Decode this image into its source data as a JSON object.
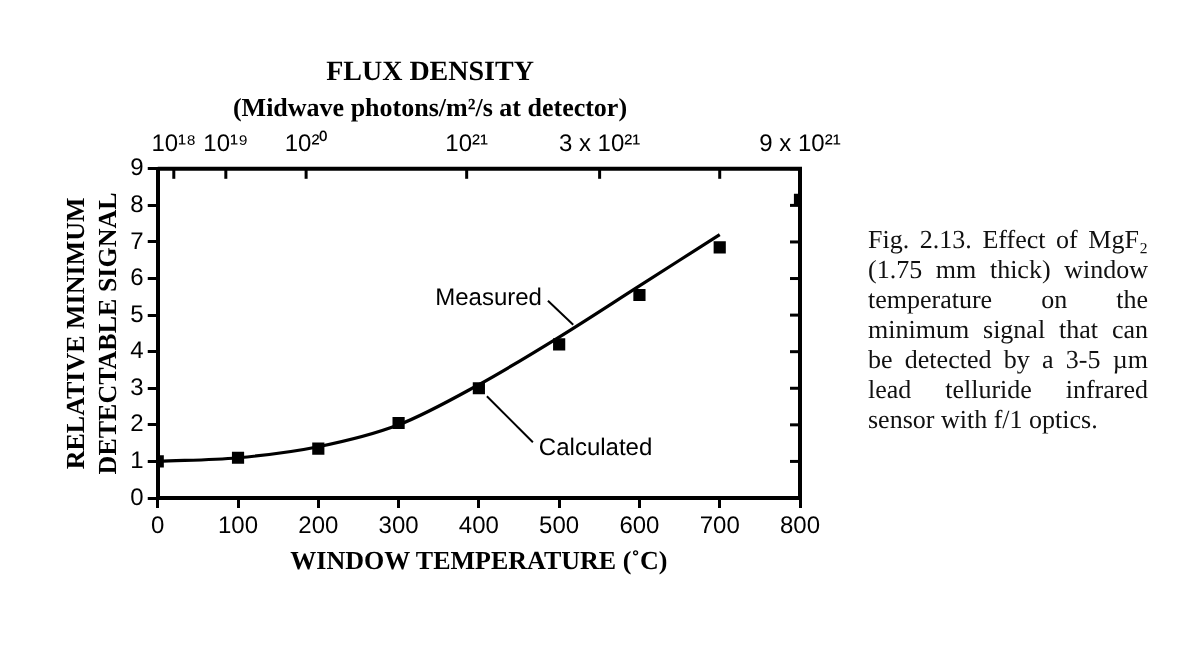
{
  "chart_data": {
    "type": "line",
    "title": "FLUX DENSITY",
    "subtitle": "(Midwave photons/m²/s at detector)",
    "xlabel": "WINDOW TEMPERATURE (˚C)",
    "ylabel": "RELATIVE MINIMUM DETECTABLE SIGNAL",
    "x": [
      0,
      100,
      200,
      300,
      400,
      500,
      600,
      700
    ],
    "series": [
      {
        "name": "Measured",
        "type": "line",
        "color": "#000000",
        "marker": "none",
        "values": [
          1.0,
          1.1,
          1.4,
          2.0,
          3.1,
          4.4,
          5.8,
          7.2
        ]
      },
      {
        "name": "Calculated",
        "type": "scatter",
        "color": "#000000",
        "marker": "square",
        "x": [
          0,
          100,
          200,
          300,
          400,
          500,
          600,
          700,
          800
        ],
        "values": [
          1.0,
          1.1,
          1.35,
          2.05,
          3.0,
          4.2,
          5.55,
          6.85,
          8.15
        ]
      }
    ],
    "xlim": [
      0,
      800
    ],
    "xticks": [
      0,
      100,
      200,
      300,
      400,
      500,
      600,
      700,
      800
    ],
    "ylim": [
      0,
      9
    ],
    "yticks": [
      0,
      1,
      2,
      3,
      4,
      5,
      6,
      7,
      8,
      9
    ],
    "grid": false,
    "annotations": [
      "10¹⁸",
      "10¹⁹",
      "10²⁰",
      "10²¹",
      "3 x 10²¹",
      "9 x 10²¹",
      "Fig. 2.13. Effect of MgF₂ (1.75 mm thick) window temperature on the minimum signal that can be detected by a 3-5 µm lead telluride infrared sensor with f/1 optics."
    ]
  }
}
